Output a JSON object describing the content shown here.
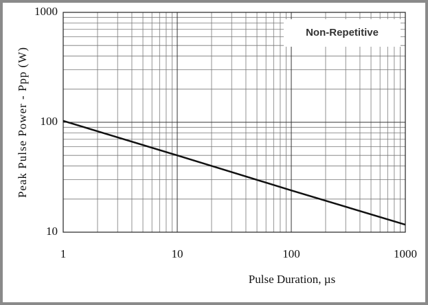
{
  "chart_data": {
    "type": "line",
    "x_label": "Pulse Duration, µs",
    "y_label": "Peak Pulse Power - Ppp (W)",
    "annotation": "Non-Repetitive",
    "x": [
      1,
      10,
      100,
      1000
    ],
    "series": [
      {
        "color": "#111111",
        "values": [
          103,
          50,
          24,
          11.7
        ]
      }
    ],
    "xlim": [
      1,
      1000
    ],
    "ylim": [
      10,
      1000
    ],
    "xticks": [
      1,
      10,
      100,
      1000
    ],
    "yticks": [
      10,
      100,
      1000
    ],
    "xlog": true,
    "ylog": true,
    "grid": true,
    "minor_grid": true
  }
}
